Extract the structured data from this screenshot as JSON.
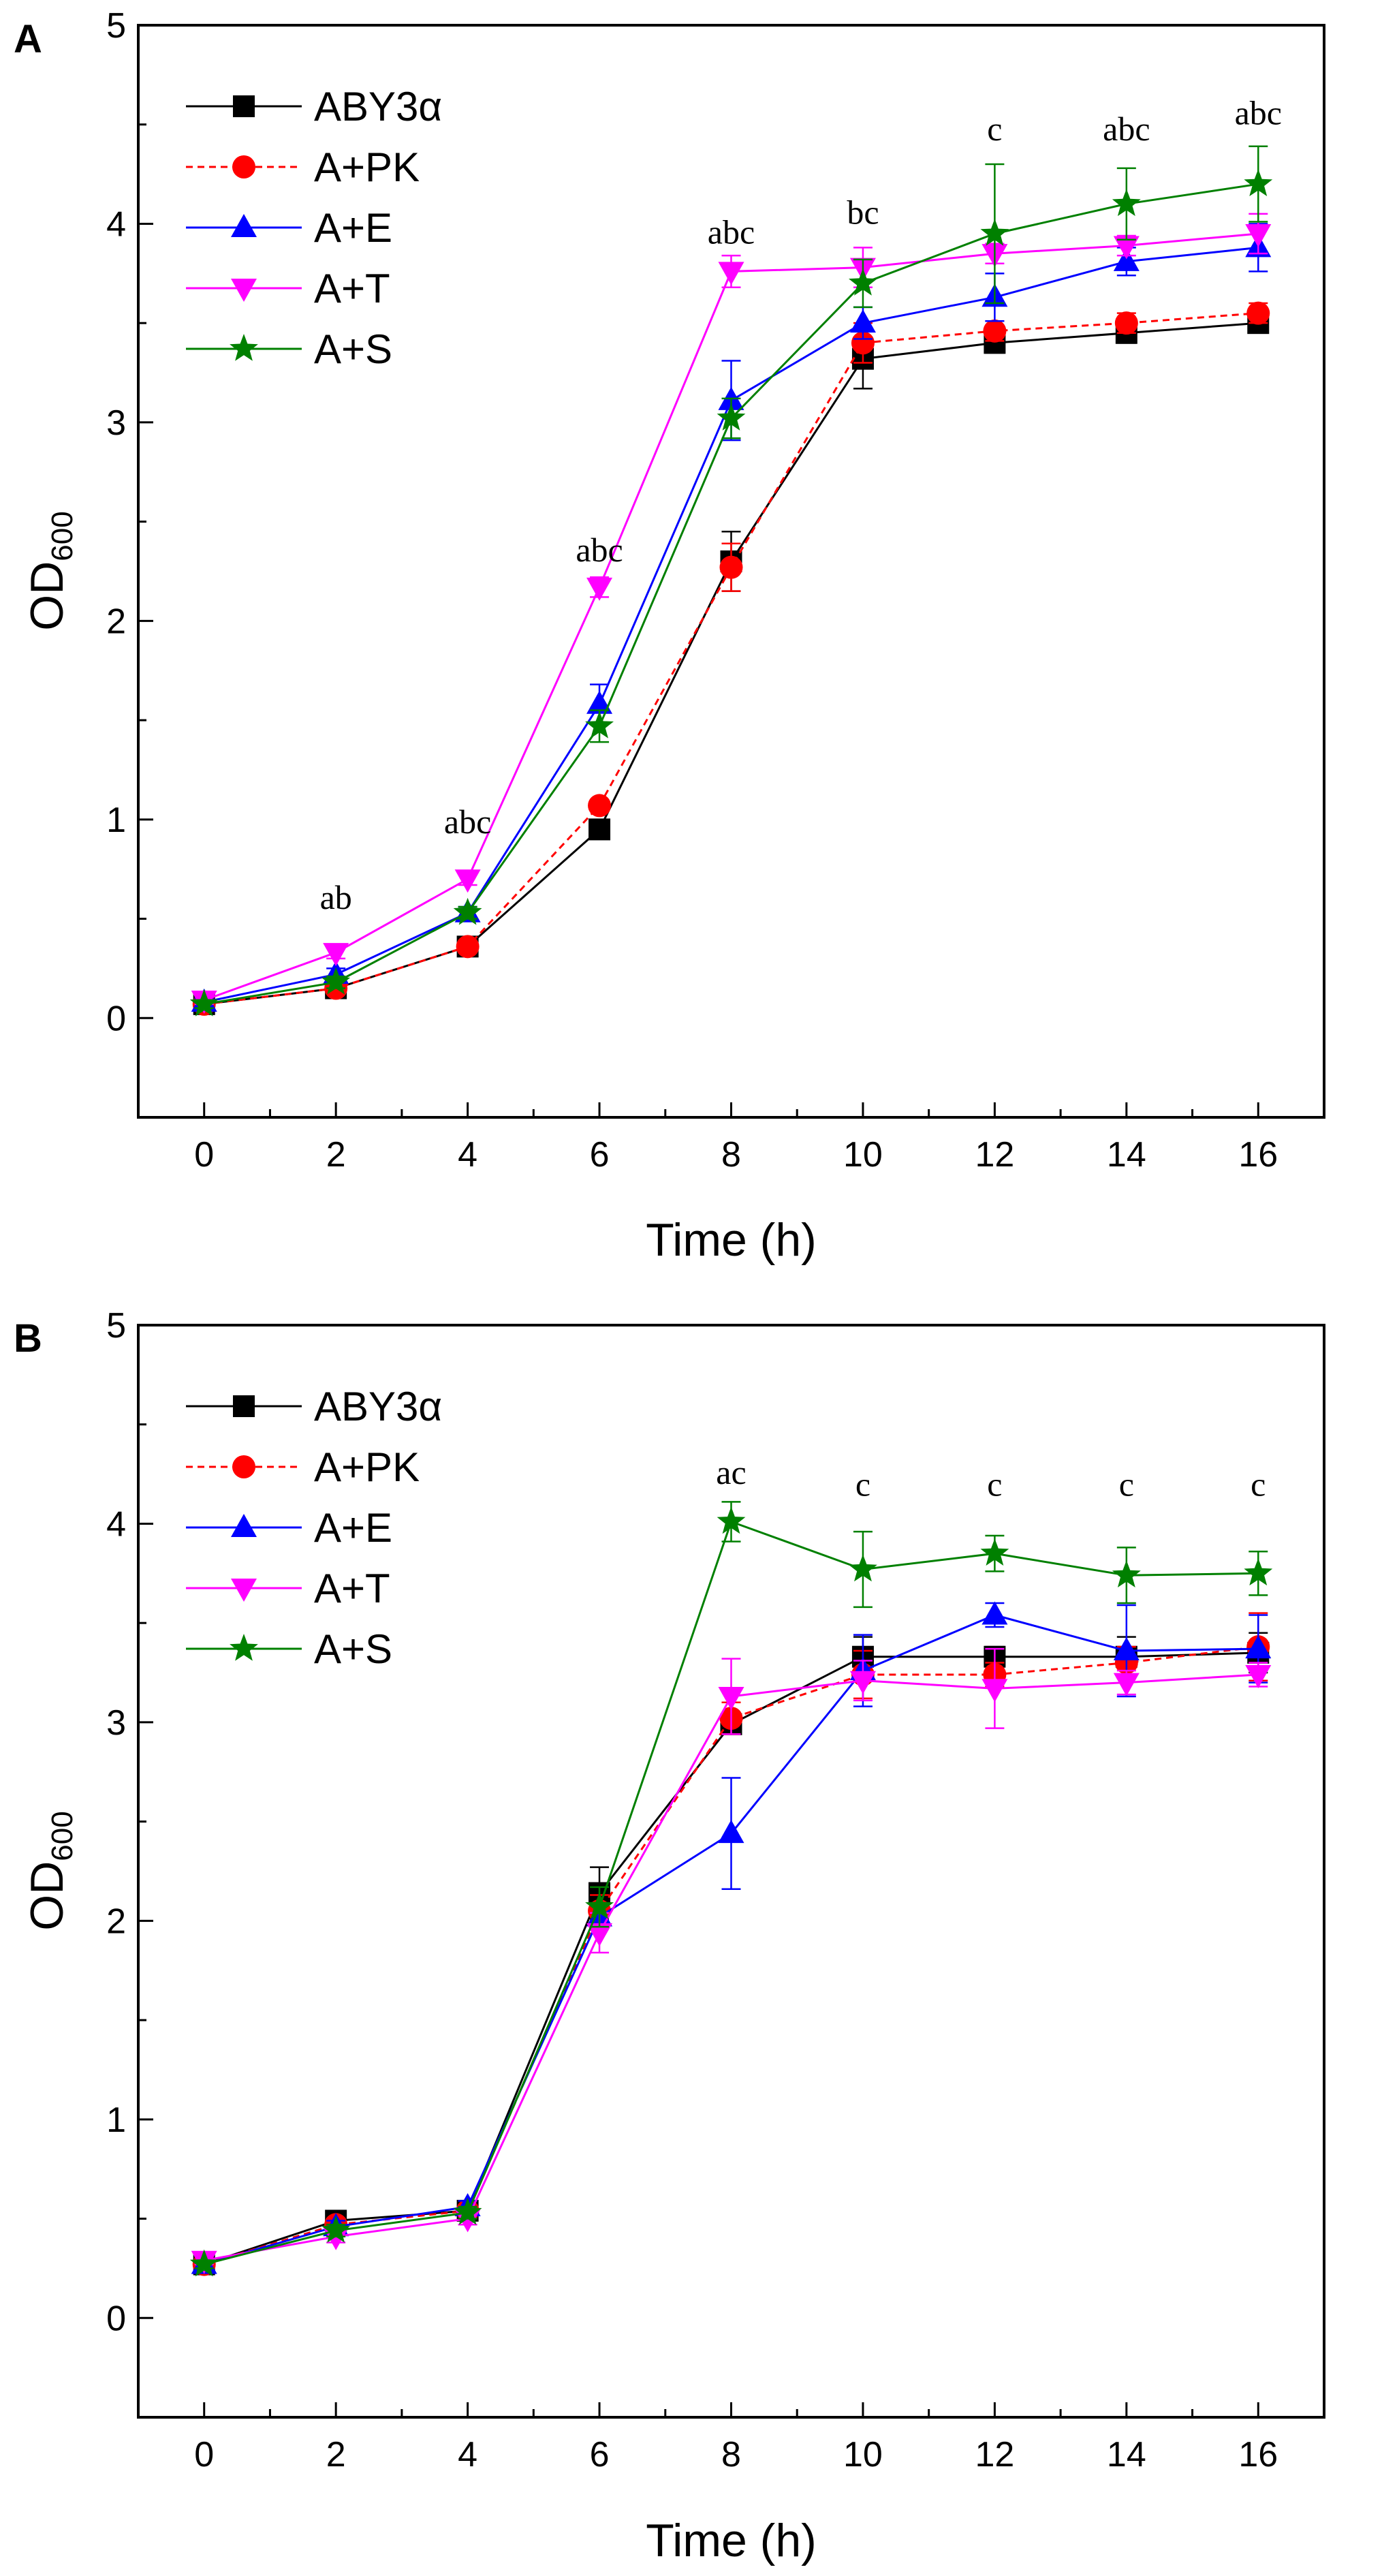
{
  "chart_data": [
    {
      "type": "line",
      "panel": "A",
      "xlabel": "Time (h)",
      "ylabel": {
        "main": "OD",
        "subscript": "600"
      },
      "xlim": [
        -1,
        17
      ],
      "ylim": [
        -0.5,
        5
      ],
      "xticks": [
        0,
        2,
        4,
        6,
        8,
        10,
        12,
        14,
        16
      ],
      "yticks": [
        0,
        1,
        2,
        3,
        4,
        5
      ],
      "legend_position": "top-left",
      "x": [
        0,
        2,
        4,
        6,
        8,
        10,
        12,
        14,
        16
      ],
      "series": [
        {
          "name": "ABY3α",
          "color": "#000000",
          "marker": "square",
          "dash": false,
          "values": [
            0.07,
            0.15,
            0.36,
            0.95,
            2.3,
            3.32,
            3.4,
            3.45,
            3.5
          ],
          "errors": [
            0.02,
            0.02,
            0.03,
            0.03,
            0.15,
            0.15,
            0.05,
            0.05,
            0.05
          ]
        },
        {
          "name": "A+PK",
          "color": "#ff0000",
          "marker": "circle",
          "dash": true,
          "values": [
            0.07,
            0.15,
            0.36,
            1.07,
            2.27,
            3.4,
            3.46,
            3.5,
            3.55
          ],
          "errors": [
            0.02,
            0.02,
            0.03,
            0.03,
            0.12,
            0.1,
            0.05,
            0.05,
            0.05
          ]
        },
        {
          "name": "A+E",
          "color": "#0000ff",
          "marker": "triangle-up",
          "dash": false,
          "values": [
            0.08,
            0.22,
            0.53,
            1.58,
            3.11,
            3.5,
            3.63,
            3.81,
            3.88
          ],
          "errors": [
            0.02,
            0.03,
            0.03,
            0.1,
            0.2,
            0.08,
            0.12,
            0.07,
            0.12
          ]
        },
        {
          "name": "A+T",
          "color": "#ff00ff",
          "marker": "triangle-down",
          "dash": false,
          "values": [
            0.09,
            0.33,
            0.7,
            2.17,
            3.76,
            3.78,
            3.85,
            3.89,
            3.95
          ],
          "errors": [
            0.02,
            0.03,
            0.03,
            0.05,
            0.08,
            0.1,
            0.05,
            0.05,
            0.1
          ]
        },
        {
          "name": "A+S",
          "color": "#008000",
          "marker": "star",
          "dash": false,
          "values": [
            0.07,
            0.18,
            0.53,
            1.47,
            3.02,
            3.7,
            3.95,
            4.1,
            4.2
          ],
          "errors": [
            0.02,
            0.03,
            0.03,
            0.08,
            0.1,
            0.12,
            0.35,
            0.18,
            0.19
          ]
        }
      ],
      "annotations": [
        {
          "x": 2,
          "y": 0.55,
          "text": "ab"
        },
        {
          "x": 4,
          "y": 0.93,
          "text": "abc"
        },
        {
          "x": 6,
          "y": 2.3,
          "text": "abc"
        },
        {
          "x": 8,
          "y": 3.9,
          "text": "abc"
        },
        {
          "x": 10,
          "y": 4.0,
          "text": "bc"
        },
        {
          "x": 12,
          "y": 4.42,
          "text": "c"
        },
        {
          "x": 14,
          "y": 4.42,
          "text": "abc"
        },
        {
          "x": 16,
          "y": 4.5,
          "text": "abc"
        }
      ]
    },
    {
      "type": "line",
      "panel": "B",
      "xlabel": "Time (h)",
      "ylabel": {
        "main": "OD",
        "subscript": "600"
      },
      "xlim": [
        -1,
        17
      ],
      "ylim": [
        -0.5,
        5
      ],
      "xticks": [
        0,
        2,
        4,
        6,
        8,
        10,
        12,
        14,
        16
      ],
      "yticks": [
        0,
        1,
        2,
        3,
        4,
        5
      ],
      "legend_position": "top-left",
      "x": [
        0,
        2,
        4,
        6,
        8,
        10,
        12,
        14,
        16
      ],
      "series": [
        {
          "name": "ABY3α",
          "color": "#000000",
          "marker": "square",
          "dash": false,
          "values": [
            0.27,
            0.49,
            0.54,
            2.14,
            2.99,
            3.33,
            3.33,
            3.33,
            3.35
          ],
          "errors": [
            0.02,
            0.03,
            0.03,
            0.13,
            0.05,
            0.1,
            0.05,
            0.1,
            0.1
          ]
        },
        {
          "name": "A+PK",
          "color": "#ff0000",
          "marker": "circle",
          "dash": true,
          "values": [
            0.27,
            0.47,
            0.54,
            2.05,
            3.02,
            3.24,
            3.24,
            3.3,
            3.38
          ],
          "errors": [
            0.02,
            0.03,
            0.03,
            0.08,
            0.08,
            0.12,
            0.06,
            0.08,
            0.17
          ]
        },
        {
          "name": "A+E",
          "color": "#0000ff",
          "marker": "triangle-up",
          "dash": false,
          "values": [
            0.27,
            0.46,
            0.56,
            2.02,
            2.44,
            3.26,
            3.54,
            3.36,
            3.37
          ],
          "errors": [
            0.02,
            0.03,
            0.03,
            0.06,
            0.28,
            0.18,
            0.06,
            0.23,
            0.17
          ]
        },
        {
          "name": "A+T",
          "color": "#ff00ff",
          "marker": "triangle-down",
          "dash": false,
          "values": [
            0.29,
            0.41,
            0.5,
            1.94,
            3.13,
            3.21,
            3.17,
            3.2,
            3.24
          ],
          "errors": [
            0.02,
            0.03,
            0.03,
            0.1,
            0.19,
            0.1,
            0.2,
            0.06,
            0.06
          ]
        },
        {
          "name": "A+S",
          "color": "#008000",
          "marker": "star",
          "dash": false,
          "values": [
            0.27,
            0.44,
            0.53,
            2.07,
            4.01,
            3.77,
            3.85,
            3.74,
            3.75
          ],
          "errors": [
            0.02,
            0.03,
            0.03,
            0.1,
            0.1,
            0.19,
            0.09,
            0.14,
            0.11
          ]
        }
      ],
      "annotations": [
        {
          "x": 8,
          "y": 4.2,
          "text": "ac"
        },
        {
          "x": 10,
          "y": 4.14,
          "text": "c"
        },
        {
          "x": 12,
          "y": 4.14,
          "text": "c"
        },
        {
          "x": 14,
          "y": 4.14,
          "text": "c"
        },
        {
          "x": 16,
          "y": 4.14,
          "text": "c"
        }
      ]
    }
  ]
}
